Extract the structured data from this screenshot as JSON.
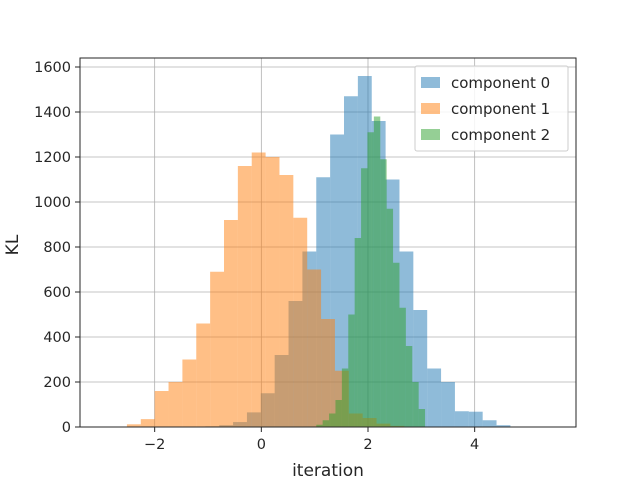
{
  "chart_data": {
    "type": "bar",
    "subtype": "overlapping-histogram",
    "title": "",
    "xlabel": "iteration",
    "ylabel": "KL",
    "xlim": [
      -3.4,
      5.9
    ],
    "ylim": [
      0,
      1640
    ],
    "xticks": [
      -2,
      0,
      2,
      4
    ],
    "xtick_labels": [
      "−2",
      "0",
      "2",
      "4"
    ],
    "yticks": [
      0,
      200,
      400,
      600,
      800,
      1000,
      1200,
      1400,
      1600
    ],
    "ytick_labels": [
      "0",
      "200",
      "400",
      "600",
      "800",
      "1000",
      "1200",
      "1400",
      "1600"
    ],
    "grid": true,
    "legend_position": "top-right",
    "series": [
      {
        "name": "component 0",
        "color": "#1f77b4",
        "bin_edges": [
          -1.05,
          -0.79,
          -0.53,
          -0.27,
          -0.01,
          0.25,
          0.51,
          0.77,
          1.03,
          1.29,
          1.55,
          1.81,
          2.07,
          2.33,
          2.59,
          2.85,
          3.11,
          3.37,
          3.63,
          3.89,
          4.15,
          4.41,
          4.67
        ],
        "counts": [
          3,
          8,
          22,
          65,
          150,
          320,
          560,
          780,
          1110,
          1300,
          1470,
          1560,
          1360,
          1100,
          780,
          520,
          260,
          200,
          70,
          68,
          30,
          8
        ]
      },
      {
        "name": "component 1",
        "color": "#ff7f0e",
        "bin_edges": [
          -2.52,
          -2.26,
          -2.0,
          -1.74,
          -1.48,
          -1.22,
          -0.96,
          -0.7,
          -0.44,
          -0.18,
          0.08,
          0.34,
          0.6,
          0.86,
          1.12,
          1.38,
          1.64,
          1.9,
          2.16,
          2.42,
          2.68,
          2.94
        ],
        "counts": [
          12,
          35,
          160,
          200,
          300,
          460,
          690,
          920,
          1160,
          1220,
          1200,
          1120,
          930,
          700,
          480,
          250,
          60,
          40,
          15,
          5,
          2
        ]
      },
      {
        "name": "component 2",
        "color": "#2ca02c",
        "bin_edges": [
          1.03,
          1.15,
          1.27,
          1.39,
          1.51,
          1.63,
          1.75,
          1.87,
          1.99,
          2.11,
          2.23,
          2.35,
          2.47,
          2.59,
          2.71,
          2.83,
          2.95,
          3.07
        ],
        "counts": [
          10,
          30,
          60,
          120,
          260,
          500,
          840,
          1150,
          1310,
          1380,
          1190,
          970,
          730,
          530,
          360,
          200,
          80
        ]
      }
    ]
  }
}
